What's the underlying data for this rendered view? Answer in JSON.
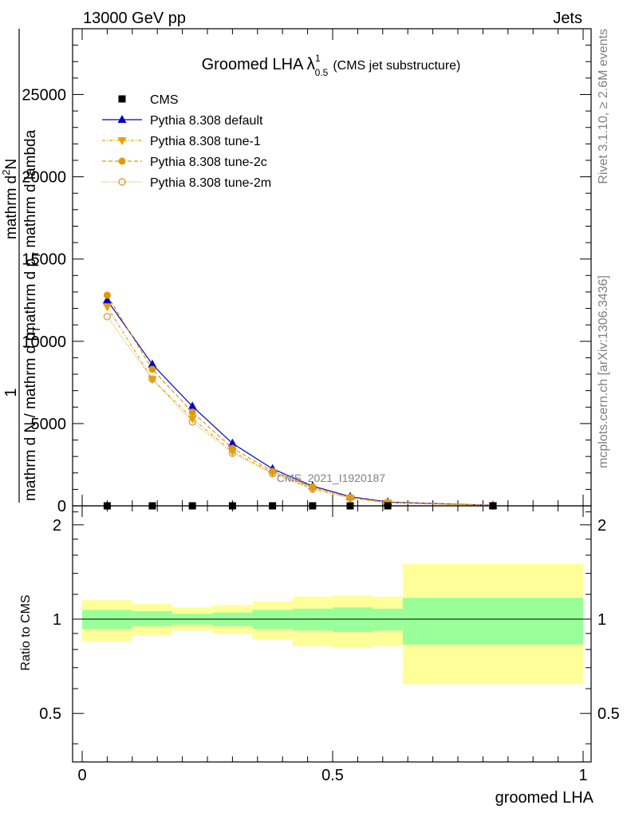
{
  "header": {
    "left": "13000 GeV pp",
    "right": "Jets"
  },
  "side_text": {
    "rivet": "Rivet 3.1.10, ≥ 2.6M events",
    "mcplots": "mcplots.cern.ch [arXiv:1306.3436]"
  },
  "chart_data": [
    {
      "type": "line",
      "title_main": "Groomed LHA",
      "title_lambda": "λ",
      "title_sup": "1",
      "title_sub": "0.5",
      "subtitle": "(CMS jet substructure)",
      "watermark": "CMS_2021_I1920187",
      "ylabel_parts": {
        "one": "1",
        "numerator": "mathrm d N",
        "denominator": "mathrm d p",
        "denominator_sub": "T",
        "rhs_numerator": "mathrm d",
        "rhs_numerator_sup": "2",
        "rhs_numerator_N": "N",
        "rhs_denominator": "mathrm d p",
        "rhs_denominator_sub": "T",
        "rhs_denominator_tail": "mathrm d lambda"
      },
      "xlim": [
        0,
        1
      ],
      "ylim": [
        0,
        29000
      ],
      "yticks": [
        0,
        5000,
        10000,
        15000,
        20000,
        25000
      ],
      "ytick_labels": [
        "0",
        "5000",
        "10000",
        "15000",
        "20000",
        "25000"
      ],
      "x": [
        0.05,
        0.14,
        0.22,
        0.3,
        0.38,
        0.46,
        0.535,
        0.61,
        0.82
      ],
      "series": [
        {
          "name": "CMS",
          "color": "#000000",
          "marker": "square",
          "values": [
            0,
            0,
            0,
            0,
            0,
            0,
            0,
            0,
            0
          ]
        },
        {
          "name": "Pythia 8.308 default",
          "color": "#0000cc",
          "marker": "triangle-up",
          "dash": "",
          "values": [
            12500,
            8600,
            6050,
            3800,
            2250,
            1200,
            560,
            230,
            30
          ]
        },
        {
          "name": "Pythia 8.308 tune-1",
          "color": "#e8a100",
          "marker": "triangle-down",
          "dash": "4,2,1,2",
          "values": [
            12100,
            7700,
            5300,
            3300,
            2000,
            1050,
            480,
            180,
            25
          ]
        },
        {
          "name": "Pythia 8.308 tune-2c",
          "color": "#e09b00",
          "marker": "circle",
          "dash": "5,3",
          "values": [
            12800,
            8300,
            5700,
            3500,
            2100,
            1150,
            520,
            210,
            28
          ]
        },
        {
          "name": "Pythia 8.308 tune-2m",
          "color": "#d8a040",
          "marker": "circle-open",
          "dash": "1,2",
          "values": [
            11500,
            7700,
            5100,
            3200,
            1950,
            1020,
            470,
            180,
            25
          ]
        }
      ]
    },
    {
      "type": "area",
      "ylabel": "Ratio to CMS",
      "xlabel": "groomed LHA",
      "xlim": [
        0,
        1
      ],
      "ylim": [
        0.35,
        2.3
      ],
      "yticks": [
        0.5,
        1,
        2
      ],
      "ytick_labels": [
        "0.5",
        "1",
        "2"
      ],
      "xticks": [
        0,
        0.5,
        1
      ],
      "xtick_labels": [
        "0",
        "0.5",
        "1"
      ],
      "bin_edges": [
        0,
        0.1,
        0.18,
        0.26,
        0.34,
        0.42,
        0.5,
        0.58,
        0.64,
        1.0
      ],
      "bands": [
        {
          "name": "stat",
          "color": "#99ff99",
          "low": [
            0.93,
            0.95,
            0.96,
            0.95,
            0.93,
            0.92,
            0.91,
            0.92,
            0.83
          ],
          "high": [
            1.07,
            1.06,
            1.04,
            1.05,
            1.07,
            1.08,
            1.09,
            1.08,
            1.17
          ]
        },
        {
          "name": "total",
          "color": "#ffff99",
          "low": [
            0.85,
            0.89,
            0.92,
            0.9,
            0.86,
            0.82,
            0.81,
            0.82,
            0.62
          ],
          "high": [
            1.15,
            1.12,
            1.09,
            1.11,
            1.14,
            1.18,
            1.19,
            1.18,
            1.5
          ]
        }
      ],
      "reference_line": 1
    }
  ]
}
